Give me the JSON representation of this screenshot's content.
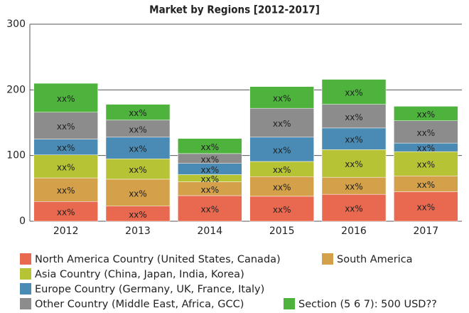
{
  "chart_data": {
    "type": "stacked-bar",
    "title": "Market by Regions [2012-2017]",
    "categories": [
      "2012",
      "2013",
      "2014",
      "2015",
      "2016",
      "2017"
    ],
    "segment_label": "xx%",
    "series": [
      {
        "name": "North America Country (United States, Canada)",
        "color": "#e8694f",
        "values": [
          30,
          23,
          39,
          38,
          41,
          45
        ]
      },
      {
        "name": "South America",
        "color": "#d4a04a",
        "values": [
          36,
          41,
          21,
          30,
          26,
          24
        ]
      },
      {
        "name": "Asia Country (China, Japan, India, Korea)",
        "color": "#b5c334",
        "values": [
          35,
          31,
          11,
          23,
          42,
          37
        ]
      },
      {
        "name": "Europe Country (Germany, UK, France, Italy)",
        "color": "#4a8bb5",
        "values": [
          24,
          33,
          17,
          37,
          33,
          13
        ]
      },
      {
        "name": "Other Country (Middle East, Africa, GCC)",
        "color": "#8c8c8c",
        "values": [
          41,
          26,
          15,
          44,
          36,
          34
        ]
      },
      {
        "name": "Section (5 6 7): 500 USD??",
        "color": "#4db33d",
        "values": [
          44,
          24,
          23,
          33,
          38,
          22
        ]
      }
    ],
    "ylim": [
      0,
      300
    ],
    "yticks": [
      0,
      100,
      200,
      300
    ],
    "grid": true
  }
}
